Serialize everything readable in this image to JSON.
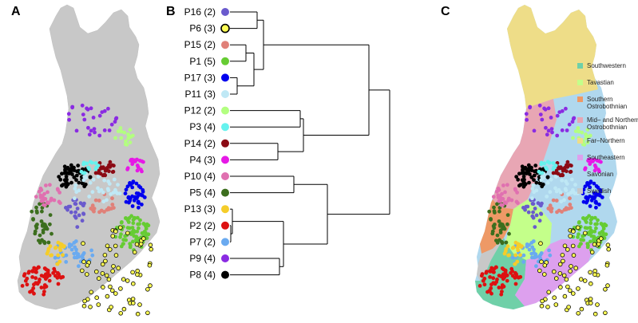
{
  "panels": {
    "a": "A",
    "b": "B",
    "c": "C"
  },
  "dendrogram": {
    "leaves": [
      {
        "id": "P16",
        "label": "P16 (2)",
        "color": "#6a5acd",
        "highlight": false
      },
      {
        "id": "P6",
        "label": "P6 (3)",
        "color": "#ffff55",
        "highlight": true
      },
      {
        "id": "P15",
        "label": "P15 (2)",
        "color": "#e08078",
        "highlight": false
      },
      {
        "id": "P1",
        "label": "P1 (5)",
        "color": "#66cc33",
        "highlight": false
      },
      {
        "id": "P17",
        "label": "P17 (3)",
        "color": "#0000ee",
        "highlight": false
      },
      {
        "id": "P11",
        "label": "P11 (3)",
        "color": "#bfe8f5",
        "highlight": false
      },
      {
        "id": "P12",
        "label": "P12 (2)",
        "color": "#b3ff80",
        "highlight": false
      },
      {
        "id": "P3",
        "label": "P3 (4)",
        "color": "#66f2ee",
        "highlight": false
      },
      {
        "id": "P14",
        "label": "P14 (2)",
        "color": "#8b0a14",
        "highlight": false
      },
      {
        "id": "P4",
        "label": "P4 (3)",
        "color": "#e619e6",
        "highlight": false
      },
      {
        "id": "P10",
        "label": "P10 (4)",
        "color": "#e070b0",
        "highlight": false
      },
      {
        "id": "P5",
        "label": "P5 (4)",
        "color": "#3c6e1e",
        "highlight": false
      },
      {
        "id": "P13",
        "label": "P13 (3)",
        "color": "#f5cd2a",
        "highlight": false
      },
      {
        "id": "P2",
        "label": "P2 (2)",
        "color": "#dd1111",
        "highlight": false
      },
      {
        "id": "P7",
        "label": "P7 (2)",
        "color": "#6aaaf0",
        "highlight": false
      },
      {
        "id": "P9",
        "label": "P9 (4)",
        "color": "#8a2be2",
        "highlight": false
      },
      {
        "id": "P8",
        "label": "P8 (4)",
        "color": "#000000",
        "highlight": false
      }
    ]
  },
  "legend": [
    {
      "label": [
        "Southwestern"
      ],
      "color": "#6fd0a8"
    },
    {
      "label": [
        "Tavastian"
      ],
      "color": "#c4ff8a"
    },
    {
      "label": [
        "Southern",
        "Ostrobothnian"
      ],
      "color": "#ee9966"
    },
    {
      "label": [
        "Mid– and Northern",
        "Ostrobothnian"
      ],
      "color": "#e8a6b4"
    },
    {
      "label": [
        "Far–Northern"
      ],
      "color": "#eedd88"
    },
    {
      "label": [
        "Southeastern"
      ],
      "color": "#dda0ee"
    },
    {
      "label": [
        "Savonian"
      ],
      "color": "#b0d8ee"
    },
    {
      "label": [
        "Swedish"
      ],
      "color": "#c8c8c8"
    }
  ]
}
